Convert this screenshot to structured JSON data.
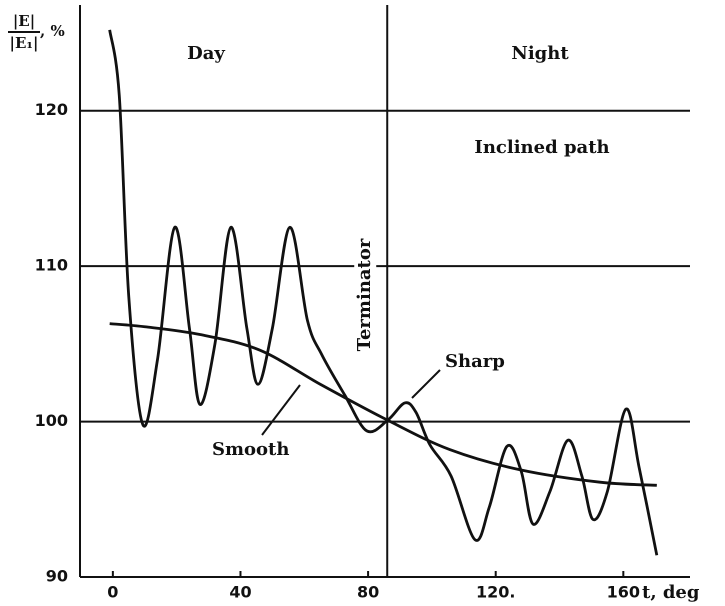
{
  "chart_data": {
    "type": "line",
    "ylabel_num": "|E|",
    "ylabel_den": "|E₁|",
    "ylabel_unit": ", %",
    "xlabel": "t, deg",
    "xlim": [
      -10.3,
      180.9
    ],
    "ylim": [
      90,
      126.8
    ],
    "xticks": [
      0,
      40,
      80,
      {
        "value": 120,
        "label": "120."
      },
      160
    ],
    "yticks": [
      90,
      100,
      110,
      120
    ],
    "grid": true,
    "terminator": {
      "x": 86,
      "label": "Terminator"
    },
    "annotations": [
      "Day",
      "Night",
      "Inclined path"
    ],
    "series": [
      {
        "name": "Sharp",
        "color": "#111111",
        "x": [
          -1,
          2,
          5,
          9.4,
          14,
          19.4,
          24,
          27.3,
          32,
          37,
          42,
          45.5,
          50,
          55.5,
          61,
          65.5,
          72.7,
          79.6,
          86.2,
          91.5,
          95,
          99.4,
          106,
          113.5,
          118,
          123.5,
          128,
          131.7,
          137,
          142.6,
          147,
          150.5,
          155,
          160.8,
          165,
          170.5
        ],
        "values": [
          125.2,
          121,
          108,
          99.8,
          104,
          112.5,
          106,
          101.1,
          105,
          112.5,
          106,
          102.4,
          106,
          112.5,
          106.5,
          104.3,
          101.7,
          99.4,
          100.1,
          101.2,
          100.6,
          98.5,
          96.5,
          92.4,
          94.5,
          98.4,
          96.8,
          93.4,
          95.5,
          98.8,
          96.5,
          93.7,
          95.5,
          100.8,
          97,
          91.4
        ]
      },
      {
        "name": "Smooth",
        "color": "#111111",
        "x": [
          -1,
          10,
          27.3,
          46,
          65,
          86,
          105.6,
          127.6,
          152.7,
          170.5
        ],
        "values": [
          106.3,
          106.1,
          105.6,
          104.6,
          102.4,
          100.1,
          98.2,
          96.9,
          96.1,
          95.9
        ]
      }
    ]
  }
}
